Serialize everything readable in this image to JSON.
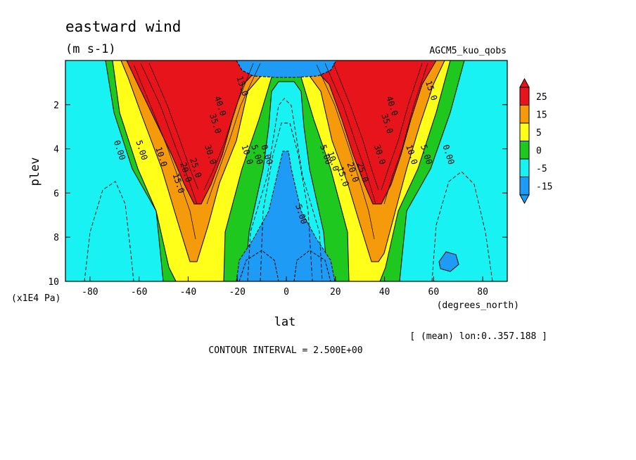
{
  "chart_data": {
    "type": "contour",
    "title": "eastward wind",
    "units": "(m s-1)",
    "dataset": "AGCM5_kuo_qobs",
    "xlabel": "lat",
    "xunits": "(degrees_north)",
    "ylabel": "plev",
    "yunits": "(x1E4 Pa)",
    "xlim": [
      -90,
      90
    ],
    "ylim": [
      10,
      0
    ],
    "xticks": [
      "-80",
      "-60",
      "-40",
      "-20",
      "0",
      "20",
      "40",
      "60",
      "80"
    ],
    "yticks": [
      "2",
      "4",
      "6",
      "8",
      "10"
    ],
    "colorbar": {
      "labels": [
        "25",
        "15",
        "5",
        "0",
        "-5",
        "-15"
      ],
      "colors": [
        "#e8141c",
        "#f59a0a",
        "#ffff1a",
        "#1ec81e",
        "#19f2f2",
        "#1e9bf5"
      ]
    },
    "contour_labels": [
      {
        "text": "0.00",
        "lat": -69,
        "plev": 4.1
      },
      {
        "text": "5.00",
        "lat": -60,
        "plev": 4.1
      },
      {
        "text": "10.0",
        "lat": -52,
        "plev": 4.4
      },
      {
        "text": "15.0",
        "lat": -45,
        "plev": 5.6
      },
      {
        "text": "20.0",
        "lat": -42,
        "plev": 5.1
      },
      {
        "text": "25.0",
        "lat": -38,
        "plev": 4.9
      },
      {
        "text": "30.0",
        "lat": -32,
        "plev": 4.3
      },
      {
        "text": "35.0",
        "lat": -30,
        "plev": 2.9
      },
      {
        "text": "40.0",
        "lat": -28,
        "plev": 2.1
      },
      {
        "text": "15.0",
        "lat": -19,
        "plev": 1.2
      },
      {
        "text": "10.0",
        "lat": -17,
        "plev": 4.3
      },
      {
        "text": "5.00",
        "lat": -13,
        "plev": 4.3
      },
      {
        "text": "0.00",
        "lat": -9,
        "plev": 4.3
      },
      {
        "text": "5.00",
        "lat": 5,
        "plev": 7.0
      },
      {
        "text": "5.00",
        "lat": 15,
        "plev": 4.3
      },
      {
        "text": "10.0",
        "lat": 18,
        "plev": 4.6
      },
      {
        "text": "15.0",
        "lat": 22,
        "plev": 5.3
      },
      {
        "text": "20.0",
        "lat": 26,
        "plev": 5.1
      },
      {
        "text": "25.0",
        "lat": 30,
        "plev": 5.1
      },
      {
        "text": "30.0",
        "lat": 37,
        "plev": 4.3
      },
      {
        "text": "35.0",
        "lat": 40,
        "plev": 2.9
      },
      {
        "text": "40.0",
        "lat": 42,
        "plev": 2.1
      },
      {
        "text": "15.0",
        "lat": 58,
        "plev": 1.4
      },
      {
        "text": "10.0",
        "lat": 50,
        "plev": 4.3
      },
      {
        "text": "5.00",
        "lat": 56,
        "plev": 4.3
      },
      {
        "text": "0.00",
        "lat": 65,
        "plev": 4.3
      }
    ],
    "footer": {
      "mean_note": "[ (mean) lon:0..357.188 ]",
      "contour_interval": "CONTOUR INTERVAL = 2.500E+00"
    }
  }
}
